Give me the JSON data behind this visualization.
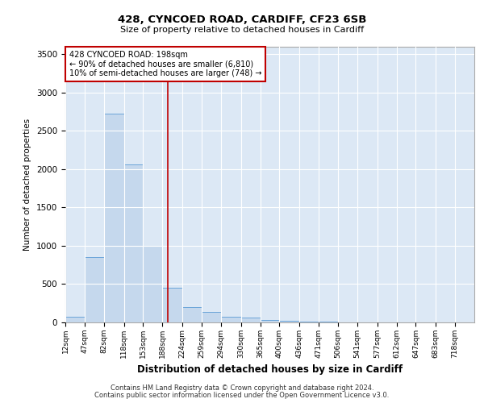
{
  "title_line1": "428, CYNCOED ROAD, CARDIFF, CF23 6SB",
  "title_line2": "Size of property relative to detached houses in Cardiff",
  "xlabel": "Distribution of detached houses by size in Cardiff",
  "ylabel": "Number of detached properties",
  "footnote1": "Contains HM Land Registry data © Crown copyright and database right 2024.",
  "footnote2": "Contains public sector information licensed under the Open Government Licence v3.0.",
  "annotation_line1": "428 CYNCOED ROAD: 198sqm",
  "annotation_line2": "← 90% of detached houses are smaller (6,810)",
  "annotation_line3": "10% of semi-detached houses are larger (748) →",
  "property_size": 198,
  "bar_color": "#c5d8ed",
  "bar_edge_color": "#5b9bd5",
  "vline_color": "#c00000",
  "annotation_box_color": "#c00000",
  "background_color": "#dce8f5",
  "grid_color": "#ffffff",
  "categories": [
    "12sqm",
    "47sqm",
    "82sqm",
    "118sqm",
    "153sqm",
    "188sqm",
    "224sqm",
    "259sqm",
    "294sqm",
    "330sqm",
    "365sqm",
    "400sqm",
    "436sqm",
    "471sqm",
    "506sqm",
    "541sqm",
    "577sqm",
    "612sqm",
    "647sqm",
    "683sqm",
    "718sqm"
  ],
  "bin_edges": [
    12,
    47,
    82,
    118,
    153,
    188,
    224,
    259,
    294,
    330,
    365,
    400,
    436,
    471,
    506,
    541,
    577,
    612,
    647,
    683,
    718,
    753
  ],
  "counts": [
    70,
    850,
    2720,
    2060,
    1000,
    450,
    200,
    140,
    75,
    65,
    35,
    25,
    10,
    8,
    5,
    3,
    2,
    1,
    1,
    1,
    1
  ],
  "ylim": [
    0,
    3600
  ],
  "yticks": [
    0,
    500,
    1000,
    1500,
    2000,
    2500,
    3000,
    3500
  ]
}
